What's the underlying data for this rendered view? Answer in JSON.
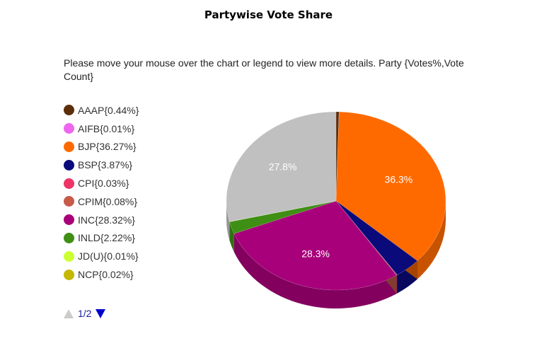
{
  "chart_data": {
    "type": "pie",
    "title": "Partywise Vote Share",
    "subtitle": "Please move your mouse over the chart or legend to view more details. Party {Votes%,Vote Count}",
    "legend_position": "left",
    "slices": [
      {
        "name": "AAAP",
        "value": 0.44,
        "legend": "AAAP{0.44%}",
        "color": "#5c2e0a"
      },
      {
        "name": "AIFB",
        "value": 0.01,
        "legend": "AIFB{0.01%}",
        "color": "#ee66ee"
      },
      {
        "name": "BJP",
        "value": 36.27,
        "legend": "BJP{36.27%}",
        "color": "#ff6a00",
        "label": "36.3%"
      },
      {
        "name": "BSP",
        "value": 3.87,
        "legend": "BSP{3.87%}",
        "color": "#0a0a7a"
      },
      {
        "name": "CPI",
        "value": 0.03,
        "legend": "CPI{0.03%}",
        "color": "#ee3366"
      },
      {
        "name": "CPIM",
        "value": 0.08,
        "legend": "CPIM{0.08%}",
        "color": "#c85a4a"
      },
      {
        "name": "INC",
        "value": 28.32,
        "legend": "INC{28.32%}",
        "color": "#a8007a",
        "label": "28.3%"
      },
      {
        "name": "INLD",
        "value": 2.22,
        "legend": "INLD{2.22%}",
        "color": "#3f8f14"
      },
      {
        "name": "JD(U)",
        "value": 0.01,
        "legend": "JD(U){0.01%}",
        "color": "#ccff33"
      },
      {
        "name": "NCP",
        "value": 0.02,
        "legend": "NCP{0.02%}",
        "color": "#c4b800"
      },
      {
        "name": "",
        "value": 27.8,
        "color": "#c0c0c0",
        "label": "27.8%"
      }
    ]
  },
  "pager": {
    "label": "1/2"
  }
}
